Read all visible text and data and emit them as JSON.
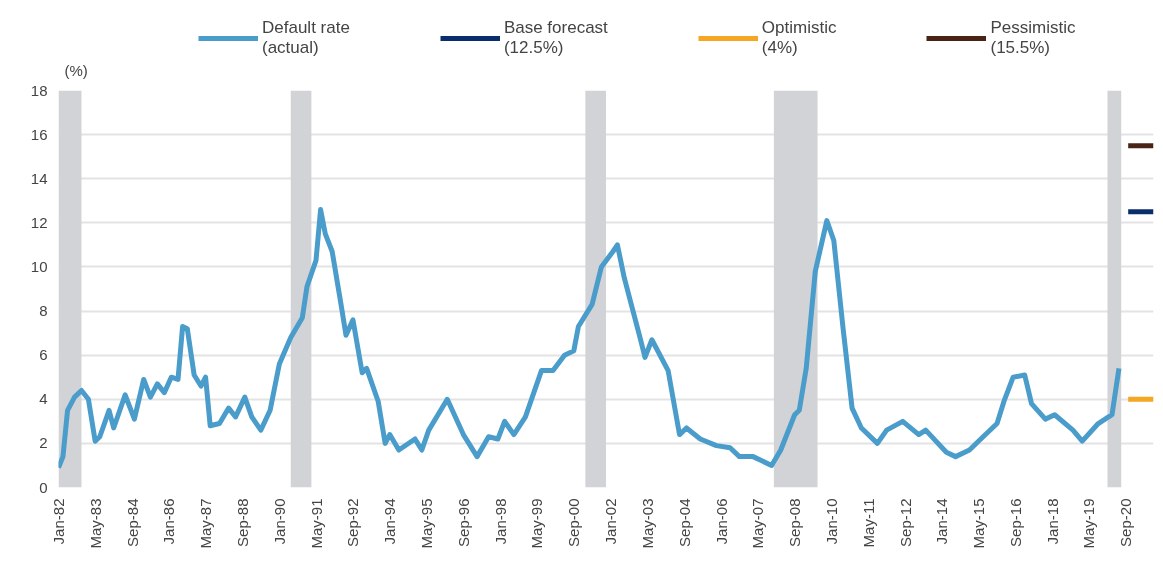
{
  "chart_data": {
    "type": "line",
    "ylabel": "(%)",
    "x": [
      "1982-01",
      "1982-03",
      "1982-05",
      "1982-08",
      "1982-11",
      "1983-02",
      "1983-05",
      "1983-07",
      "1983-11",
      "1984-01",
      "1984-06",
      "1984-10",
      "1985-02",
      "1985-05",
      "1985-08",
      "1985-11",
      "1986-02",
      "1986-05",
      "1986-07",
      "1986-09",
      "1986-12",
      "1987-03",
      "1987-05",
      "1987-07",
      "1987-11",
      "1988-03",
      "1988-06",
      "1988-10",
      "1989-01",
      "1989-05",
      "1989-09",
      "1990-01",
      "1990-06",
      "1990-11",
      "1991-01",
      "1991-05",
      "1991-07",
      "1991-09",
      "1991-12",
      "1992-04",
      "1992-06",
      "1992-09",
      "1993-01",
      "1993-03",
      "1993-08",
      "1993-11",
      "1994-01",
      "1994-05",
      "1994-12",
      "1995-03",
      "1995-06",
      "1996-02",
      "1996-09",
      "1997-03",
      "1997-08",
      "1997-12",
      "1998-03",
      "1998-07",
      "1998-12",
      "1999-07",
      "1999-12",
      "2000-05",
      "2000-09",
      "2000-11",
      "2001-05",
      "2001-09",
      "2002-02",
      "2002-04",
      "2002-07",
      "2003-02",
      "2003-04",
      "2003-07",
      "2004-02",
      "2004-07",
      "2004-10",
      "2005-04",
      "2005-11",
      "2006-05",
      "2006-09",
      "2007-03",
      "2007-11",
      "2008-03",
      "2008-09",
      "2008-11",
      "2009-02",
      "2009-06",
      "2009-11",
      "2010-02",
      "2010-06",
      "2010-10",
      "2011-02",
      "2011-09",
      "2012-01",
      "2012-08",
      "2013-03",
      "2013-06",
      "2014-03",
      "2014-07",
      "2015-01",
      "2015-07",
      "2016-01",
      "2016-04",
      "2016-08",
      "2017-01",
      "2017-04",
      "2017-10",
      "2018-02",
      "2018-10",
      "2019-02",
      "2019-09",
      "2020-03",
      "2020-06"
    ],
    "series": [
      {
        "name": "Default rate\n(actual)",
        "color": "#4a9ccb",
        "values": [
          0.9,
          1.4,
          3.5,
          4.1,
          4.4,
          4.0,
          2.1,
          2.3,
          3.5,
          2.7,
          4.2,
          3.1,
          4.9,
          4.1,
          4.7,
          4.3,
          5.0,
          4.9,
          7.3,
          7.2,
          5.1,
          4.6,
          5.0,
          2.8,
          2.9,
          3.6,
          3.2,
          4.1,
          3.2,
          2.6,
          3.5,
          5.6,
          6.8,
          7.7,
          9.1,
          10.3,
          12.6,
          11.5,
          10.7,
          8.2,
          6.9,
          7.6,
          5.2,
          5.4,
          3.9,
          2.0,
          2.4,
          1.7,
          2.2,
          1.7,
          2.6,
          4.0,
          2.4,
          1.4,
          2.3,
          2.2,
          3.0,
          2.4,
          3.2,
          5.3,
          5.3,
          6.0,
          6.2,
          7.3,
          8.3,
          10.0,
          10.7,
          11.0,
          9.5,
          6.7,
          5.9,
          6.7,
          5.3,
          2.4,
          2.7,
          2.2,
          1.9,
          1.8,
          1.4,
          1.4,
          1.0,
          1.7,
          3.3,
          3.5,
          5.4,
          9.8,
          12.1,
          11.2,
          7.3,
          3.6,
          2.7,
          2.0,
          2.6,
          3.0,
          2.4,
          2.6,
          1.6,
          1.4,
          1.7,
          2.3,
          2.9,
          3.9,
          5.0,
          5.1,
          3.8,
          3.1,
          3.3,
          2.6,
          2.1,
          2.9,
          3.3,
          5.4
        ]
      },
      {
        "name": "Base forecast\n(12.5%)",
        "color": "#0a2d6e",
        "x": [
          "2020-10",
          "2021-09"
        ],
        "values": [
          12.5,
          12.5
        ]
      },
      {
        "name": "Optimistic\n(4%)",
        "color": "#f5a623",
        "x": [
          "2020-10",
          "2021-09"
        ],
        "values": [
          4,
          4
        ]
      },
      {
        "name": "Pessimistic\n(15.5%)",
        "color": "#4a2314",
        "x": [
          "2020-10",
          "2021-09"
        ],
        "values": [
          15.5,
          15.5
        ]
      }
    ],
    "bands": [
      {
        "axis": "x",
        "from": "1982-01",
        "to": "1982-11",
        "color": "#d1d3d6"
      },
      {
        "axis": "x",
        "from": "1990-06",
        "to": "1991-03",
        "color": "#d1d3d6"
      },
      {
        "axis": "x",
        "from": "2001-02",
        "to": "2001-11",
        "color": "#d1d3d6"
      },
      {
        "axis": "x",
        "from": "2007-12",
        "to": "2009-07",
        "color": "#d1d3d6"
      },
      {
        "axis": "x",
        "from": "2020-01",
        "to": "2020-07",
        "color": "#d1d3d6"
      }
    ],
    "xlim": [
      "1982-01",
      "2021-09"
    ],
    "ylim": [
      0,
      18
    ],
    "yticks": [
      0,
      2,
      4,
      6,
      8,
      10,
      12,
      14,
      16,
      18
    ],
    "xticks": [
      {
        "value": "1982-01",
        "label": "Jan-82"
      },
      {
        "value": "1983-05",
        "label": "May-83"
      },
      {
        "value": "1984-09",
        "label": "Sep-84"
      },
      {
        "value": "1986-01",
        "label": "Jan-86"
      },
      {
        "value": "1987-05",
        "label": "May-87"
      },
      {
        "value": "1988-09",
        "label": "Sep-88"
      },
      {
        "value": "1990-01",
        "label": "Jan-90"
      },
      {
        "value": "1991-05",
        "label": "May-91"
      },
      {
        "value": "1992-09",
        "label": "Sep-92"
      },
      {
        "value": "1994-01",
        "label": "Jan-94"
      },
      {
        "value": "1995-05",
        "label": "May-95"
      },
      {
        "value": "1996-09",
        "label": "Sep-96"
      },
      {
        "value": "1998-01",
        "label": "Jan-98"
      },
      {
        "value": "1999-05",
        "label": "May-99"
      },
      {
        "value": "2000-09",
        "label": "Sep-00"
      },
      {
        "value": "2002-01",
        "label": "Jan-02"
      },
      {
        "value": "2003-05",
        "label": "May-03"
      },
      {
        "value": "2004-09",
        "label": "Sep-04"
      },
      {
        "value": "2006-01",
        "label": "Jan-06"
      },
      {
        "value": "2007-05",
        "label": "May-07"
      },
      {
        "value": "2008-09",
        "label": "Sep-08"
      },
      {
        "value": "2010-01",
        "label": "Jan-10"
      },
      {
        "value": "2011-05",
        "label": "May-11"
      },
      {
        "value": "2012-09",
        "label": "Sep-12"
      },
      {
        "value": "2014-01",
        "label": "Jan-14"
      },
      {
        "value": "2015-05",
        "label": "May-15"
      },
      {
        "value": "2016-09",
        "label": "Sep-16"
      },
      {
        "value": "2018-01",
        "label": "Jan-18"
      },
      {
        "value": "2019-05",
        "label": "May-19"
      },
      {
        "value": "2020-09",
        "label": "Sep-20"
      }
    ],
    "grid": "y",
    "legend": "top",
    "marker": "none",
    "line_style": "solid"
  }
}
